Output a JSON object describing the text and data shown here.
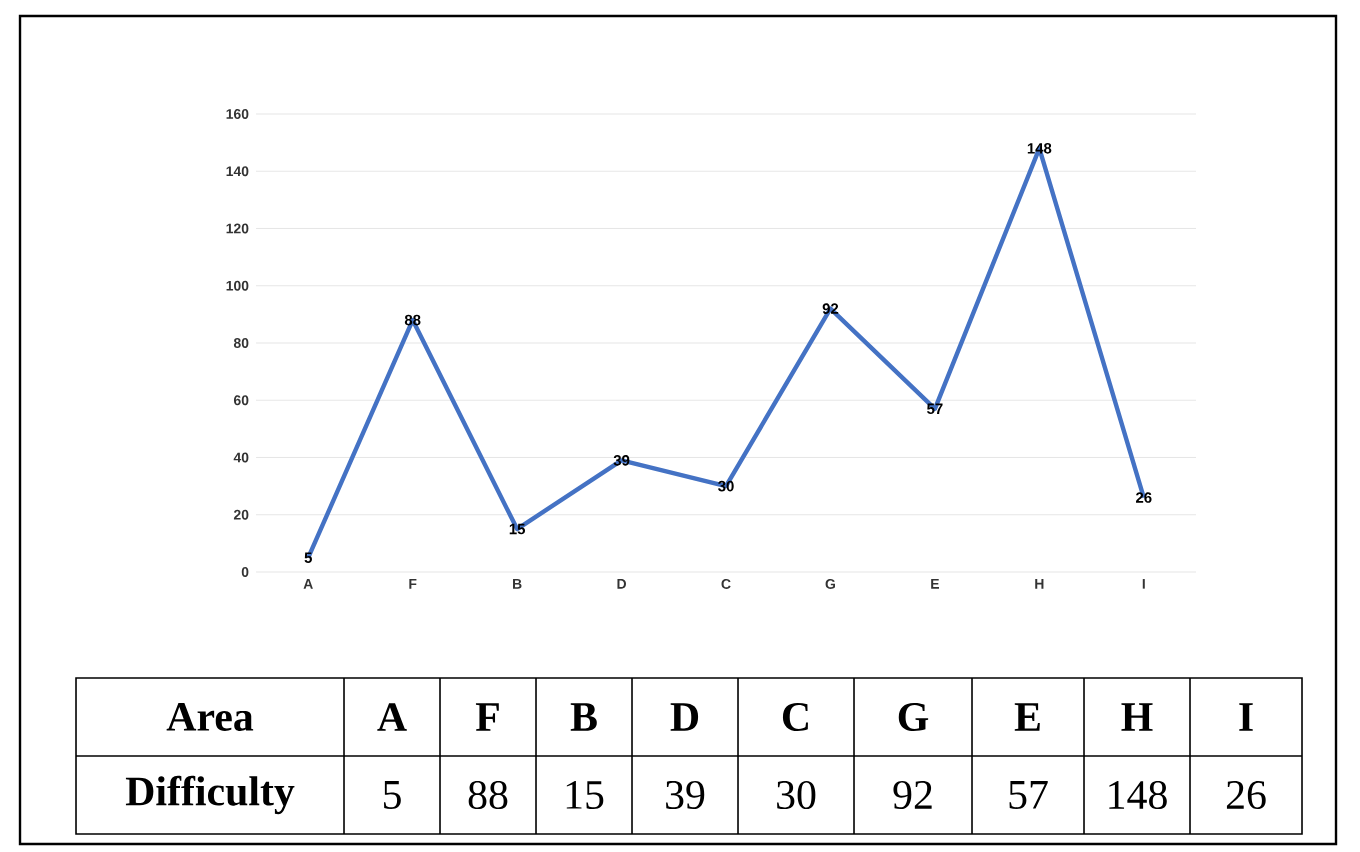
{
  "chart_data": {
    "type": "line",
    "xlabel": "Area",
    "ylabel": "Difficulty",
    "categories": [
      "A",
      "F",
      "B",
      "D",
      "C",
      "G",
      "E",
      "H",
      "I"
    ],
    "values": [
      5,
      88,
      15,
      39,
      30,
      92,
      57,
      148,
      26
    ],
    "annotations": [
      "5",
      "88",
      "15",
      "39",
      "30",
      "92",
      "57",
      "148",
      "26"
    ],
    "color": "#4472c4",
    "ylim": [
      0,
      160
    ],
    "yticks": [
      0,
      20,
      40,
      60,
      80,
      100,
      120,
      140,
      160
    ],
    "grid": "y",
    "data_labels": true,
    "marker": "none",
    "line_style": "solid"
  }
}
